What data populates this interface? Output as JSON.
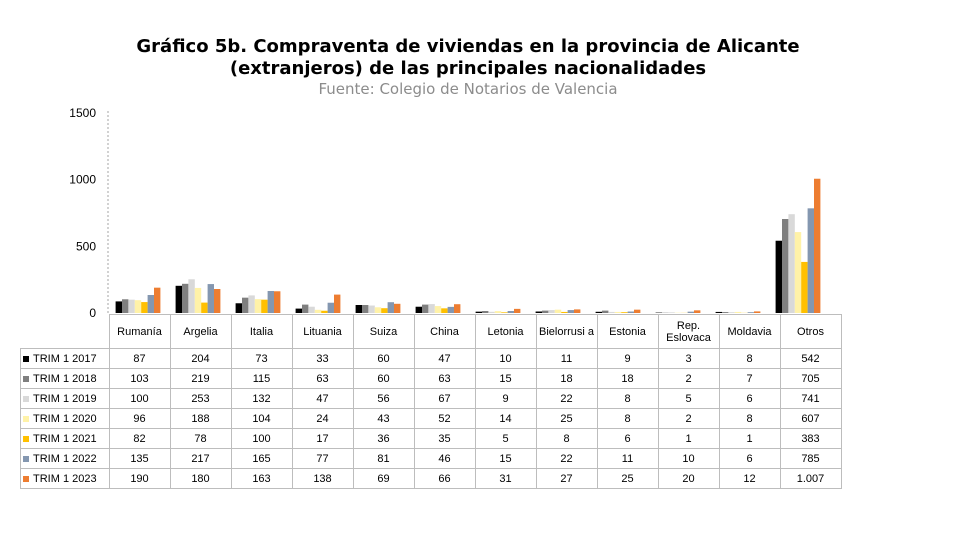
{
  "chart_data": {
    "type": "bar",
    "title": [
      "Gráfico 5b. Compraventa de viviendas en la provincia de Alicante",
      "(extranjeros) de las principales nacionalidades"
    ],
    "subtitle": "Fuente: Colegio de Notarios de Valencia",
    "categories": [
      "Rumanía",
      "Argelia",
      "Italia",
      "Lituania",
      "Suiza",
      "China",
      "Letonia",
      "Bielorrusi a",
      "Estonia",
      "Rep. Eslovaca",
      "Moldavia",
      "Otros"
    ],
    "ylim": [
      0,
      1500
    ],
    "yticks": [
      "0",
      "500",
      "1000",
      "1500"
    ],
    "ytick_values": [
      0,
      500,
      1000,
      1500
    ],
    "grid": false,
    "legend": "table-left",
    "series": [
      {
        "name": "TRIM 1 2017",
        "color": "#000000",
        "values": [
          87,
          204,
          73,
          33,
          60,
          47,
          10,
          11,
          9,
          3,
          8,
          542
        ],
        "labels": [
          "87",
          "204",
          "73",
          "33",
          "60",
          "47",
          "10",
          "11",
          "9",
          "3",
          "8",
          "542"
        ]
      },
      {
        "name": "TRIM 1 2018",
        "color": "#7f7f7f",
        "values": [
          103,
          219,
          115,
          63,
          60,
          63,
          15,
          18,
          18,
          2,
          7,
          705
        ],
        "labels": [
          "103",
          "219",
          "115",
          "63",
          "60",
          "63",
          "15",
          "18",
          "18",
          "2",
          "7",
          "705"
        ]
      },
      {
        "name": "TRIM 1 2019",
        "color": "#d9d9d9",
        "values": [
          100,
          253,
          132,
          47,
          56,
          67,
          9,
          22,
          8,
          5,
          6,
          741
        ],
        "labels": [
          "100",
          "253",
          "132",
          "47",
          "56",
          "67",
          "9",
          "22",
          "8",
          "5",
          "6",
          "741"
        ]
      },
      {
        "name": "TRIM 1 2020",
        "color": "#fff2a8",
        "values": [
          96,
          188,
          104,
          24,
          43,
          52,
          14,
          25,
          8,
          2,
          8,
          607
        ],
        "labels": [
          "96",
          "188",
          "104",
          "24",
          "43",
          "52",
          "14",
          "25",
          "8",
          "2",
          "8",
          "607"
        ]
      },
      {
        "name": "TRIM 1 2021",
        "color": "#ffc000",
        "values": [
          82,
          78,
          100,
          17,
          36,
          35,
          5,
          8,
          6,
          1,
          1,
          383
        ],
        "labels": [
          "82",
          "78",
          "100",
          "17",
          "36",
          "35",
          "5",
          "8",
          "6",
          "1",
          "1",
          "383"
        ]
      },
      {
        "name": "TRIM 1 2022",
        "color": "#8497b0",
        "values": [
          135,
          217,
          165,
          77,
          81,
          46,
          15,
          22,
          11,
          10,
          6,
          785
        ],
        "labels": [
          "135",
          "217",
          "165",
          "77",
          "81",
          "46",
          "15",
          "22",
          "11",
          "10",
          "6",
          "785"
        ]
      },
      {
        "name": "TRIM 1 2023",
        "color": "#ed7d31",
        "values": [
          190,
          180,
          163,
          138,
          69,
          66,
          31,
          27,
          25,
          20,
          12,
          1007
        ],
        "labels": [
          "190",
          "180",
          "163",
          "138",
          "69",
          "66",
          "31",
          "27",
          "25",
          "20",
          "12",
          "1.007"
        ]
      }
    ]
  }
}
